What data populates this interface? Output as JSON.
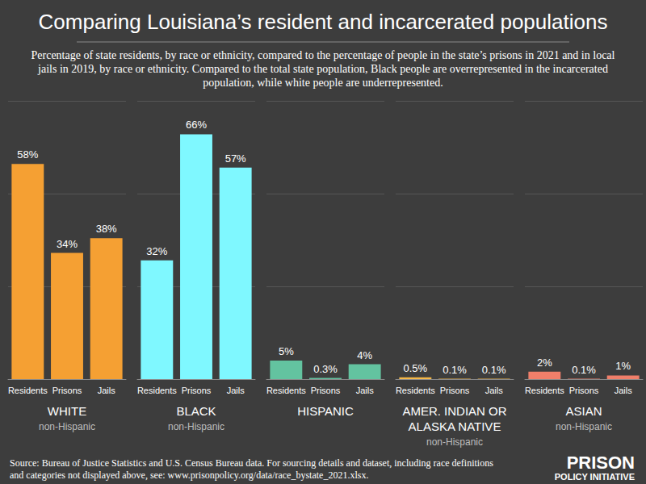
{
  "title": "Comparing Louisiana’s resident and incarcerated populations",
  "subtitle": "Percentage of state residents, by race or ethnicity, compared to the percentage of people in the state’s prisons in 2021 and in local jails in 2019, by race or ethnicity. Compared to the total state population, Black people are overrepresented in the incarcerated population, while white people are underrepresented.",
  "source": "Source: Bureau of Justice Statistics and U.S. Census Bureau data. For sourcing details and dataset, including race definitions and categories not displayed above, see: www.prisonpolicy.org/data/race_bystate_2021.xlsx.",
  "credit": [
    "PRISON",
    "POLICY INITIATIVE"
  ],
  "chart_data": [
    {
      "type": "bar",
      "title": "WHITE",
      "subtitle": "non-Hispanic",
      "categories": [
        "Residents",
        "Prisons",
        "Jails"
      ],
      "values": [
        58,
        34,
        38
      ],
      "value_labels": [
        "58%",
        "34%",
        "38%"
      ],
      "color": "#f5a033",
      "ylim": [
        0,
        75
      ],
      "yticks": [
        0,
        25,
        50,
        75
      ],
      "grid": true,
      "data_labels": true,
      "tick_labels": "x"
    },
    {
      "type": "bar",
      "title": "BLACK",
      "subtitle": "non-Hispanic",
      "categories": [
        "Residents",
        "Prisons",
        "Jails"
      ],
      "values": [
        32,
        66,
        57
      ],
      "value_labels": [
        "32%",
        "66%",
        "57%"
      ],
      "color": "#7ff8ff",
      "ylim": [
        0,
        75
      ],
      "yticks": [
        0,
        25,
        50,
        75
      ],
      "grid": true,
      "data_labels": true,
      "tick_labels": "x"
    },
    {
      "type": "bar",
      "title": "HISPANIC",
      "categories": [
        "Residents",
        "Prisons",
        "Jails"
      ],
      "values": [
        5,
        0.3,
        4
      ],
      "value_labels": [
        "5%",
        "0.3%",
        "4%"
      ],
      "color": "#63c3a0",
      "ylim": [
        0,
        75
      ],
      "yticks": [
        0,
        25,
        50,
        75
      ],
      "grid": true,
      "data_labels": true,
      "tick_labels": "x"
    },
    {
      "type": "bar",
      "title": "AMER. INDIAN OR ALASKA NATIVE",
      "subtitle": "non-Hispanic",
      "categories": [
        "Residents",
        "Prisons",
        "Jails"
      ],
      "values": [
        0.5,
        0.1,
        0.1
      ],
      "value_labels": [
        "0.5%",
        "0.1%",
        "0.1%"
      ],
      "color": "#f5b847",
      "ylim": [
        0,
        75
      ],
      "yticks": [
        0,
        25,
        50,
        75
      ],
      "grid": true,
      "data_labels": true,
      "tick_labels": "x"
    },
    {
      "type": "bar",
      "title": "ASIAN",
      "subtitle": "non-Hispanic",
      "categories": [
        "Residents",
        "Prisons",
        "Jails"
      ],
      "values": [
        2,
        0.1,
        1
      ],
      "value_labels": [
        "2%",
        "0.1%",
        "1%"
      ],
      "color": "#f07f6a",
      "ylim": [
        0,
        75
      ],
      "yticks": [
        0,
        25,
        50,
        75
      ],
      "grid": true,
      "data_labels": true,
      "tick_labels": "x"
    }
  ]
}
